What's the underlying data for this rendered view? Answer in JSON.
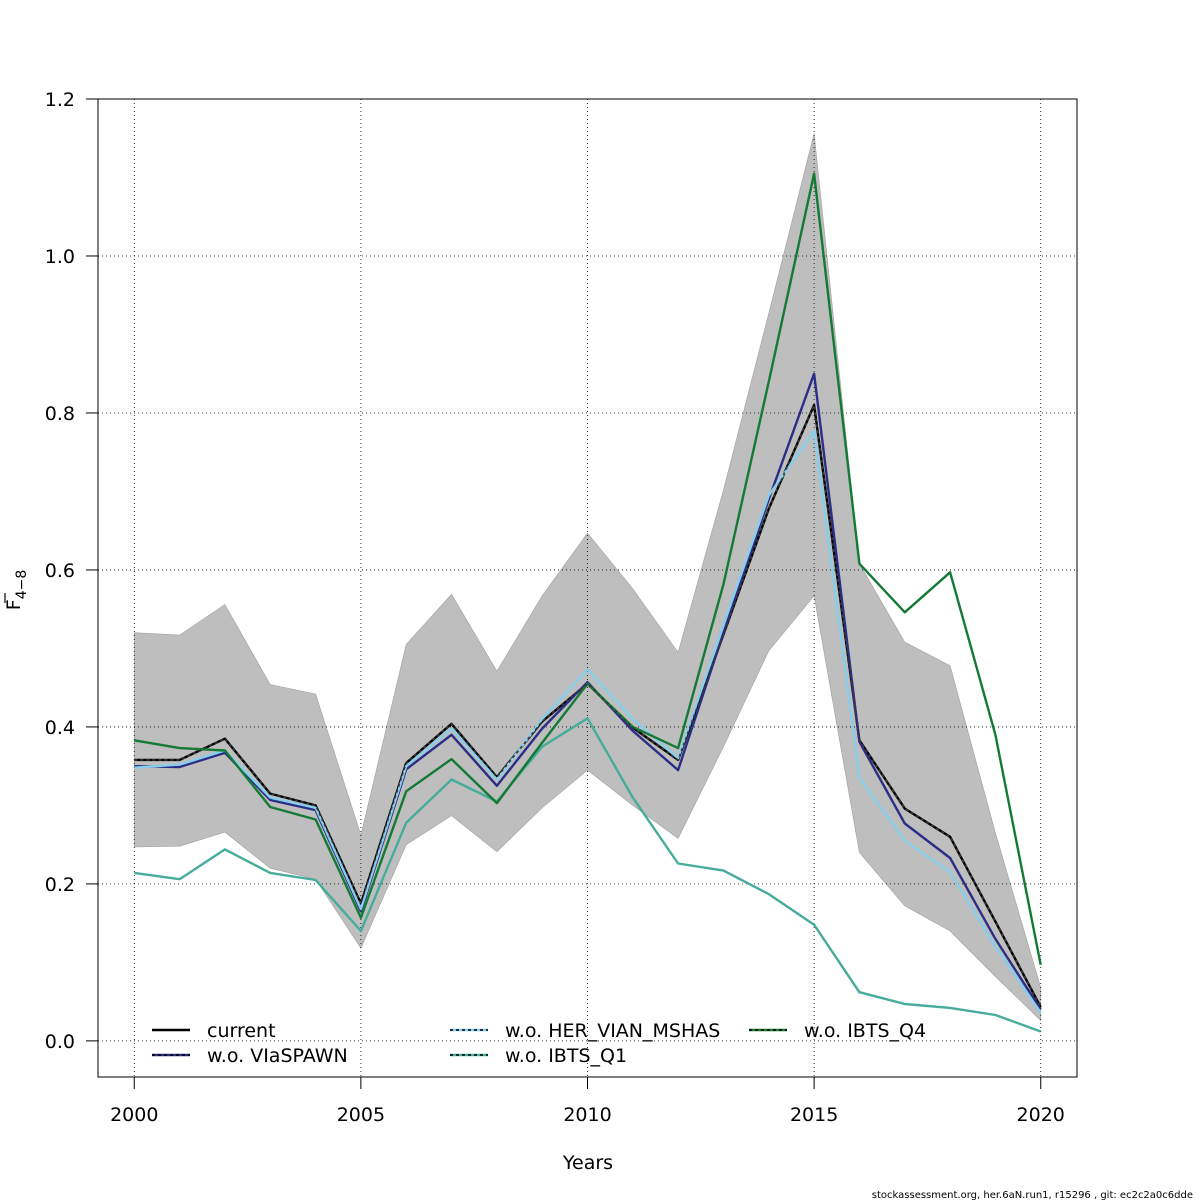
{
  "chart_data": {
    "type": "line",
    "xlabel": "Years",
    "ylabel": "F",
    "ylabel_subscript": "4−8",
    "xlim": [
      1999.2,
      2020.8
    ],
    "ylim": [
      -0.046,
      1.2
    ],
    "xticks": [
      2000,
      2005,
      2010,
      2015,
      2020
    ],
    "yticks": [
      "0.0",
      "0.2",
      "0.4",
      "0.6",
      "0.8",
      "1.0",
      "1.2"
    ],
    "grid": true,
    "x": [
      2000,
      2001,
      2002,
      2003,
      2004,
      2005,
      2006,
      2007,
      2008,
      2009,
      2010,
      2011,
      2012,
      2013,
      2014,
      2015,
      2016,
      2017,
      2018,
      2019,
      2020
    ],
    "confidence_band": {
      "lower": [
        0.247,
        0.248,
        0.266,
        0.22,
        0.206,
        0.118,
        0.25,
        0.287,
        0.241,
        0.297,
        0.345,
        0.3,
        0.258,
        0.375,
        0.497,
        0.567,
        0.24,
        0.172,
        0.14,
        0.082,
        0.026
      ],
      "upper": [
        0.52,
        0.517,
        0.556,
        0.454,
        0.442,
        0.262,
        0.505,
        0.569,
        0.471,
        0.567,
        0.647,
        0.576,
        0.495,
        0.702,
        0.927,
        1.156,
        0.608,
        0.508,
        0.478,
        0.265,
        0.068
      ],
      "color": "#bebebe"
    },
    "series": [
      {
        "name": "current",
        "color": "#000000",
        "values": [
          0.358,
          0.358,
          0.385,
          0.315,
          0.3,
          0.175,
          0.354,
          0.404,
          0.336,
          0.407,
          0.455,
          0.399,
          0.358,
          0.518,
          0.678,
          0.81,
          0.383,
          0.296,
          0.26,
          0.152,
          0.043
        ]
      },
      {
        "name": "w.o. VIaSPAWN",
        "color": "#2b2d86",
        "values": [
          0.35,
          0.349,
          0.367,
          0.307,
          0.294,
          0.165,
          0.346,
          0.39,
          0.325,
          0.398,
          0.457,
          0.395,
          0.345,
          0.52,
          0.69,
          0.85,
          0.381,
          0.277,
          0.233,
          0.13,
          0.04
        ]
      },
      {
        "name": "w.o. HER_VIAN_MSHAS",
        "color": "#87ceeb",
        "values": [
          0.348,
          0.352,
          0.37,
          0.31,
          0.297,
          0.168,
          0.35,
          0.398,
          0.333,
          0.41,
          0.473,
          0.41,
          0.36,
          0.53,
          0.695,
          0.777,
          0.335,
          0.255,
          0.215,
          0.12,
          0.036
        ]
      },
      {
        "name": "w.o. IBTS_Q1",
        "color": "#45ad9a",
        "values": [
          0.214,
          0.206,
          0.244,
          0.214,
          0.205,
          0.14,
          0.278,
          0.333,
          0.305,
          0.375,
          0.411,
          0.31,
          0.226,
          0.217,
          0.187,
          0.148,
          0.062,
          0.047,
          0.042,
          0.033,
          0.012
        ]
      },
      {
        "name": "w.o. IBTS_Q4",
        "color": "#147a36",
        "values": [
          0.383,
          0.373,
          0.37,
          0.298,
          0.282,
          0.157,
          0.318,
          0.359,
          0.303,
          0.38,
          0.455,
          0.4,
          0.373,
          0.582,
          0.84,
          1.105,
          0.608,
          0.546,
          0.597,
          0.39,
          0.097
        ]
      }
    ],
    "legend": {
      "placement": "bottom",
      "entries": [
        {
          "label": "current",
          "series": 0,
          "style": "solid"
        },
        {
          "label": "w.o. VIaSPAWN",
          "series": 1,
          "style": "dashed-over-solid"
        },
        {
          "label": "w.o. HER_VIAN_MSHAS",
          "series": 2,
          "style": "dashed-over-solid"
        },
        {
          "label": "w.o. IBTS_Q1",
          "series": 3,
          "style": "dashed-over-solid"
        },
        {
          "label": "w.o. IBTS_Q4",
          "series": 4,
          "style": "dashed-over-solid"
        }
      ]
    }
  },
  "footer": "stockassessment.org, her.6aN.run1, r15296 , git: ec2c2a0c6dde"
}
